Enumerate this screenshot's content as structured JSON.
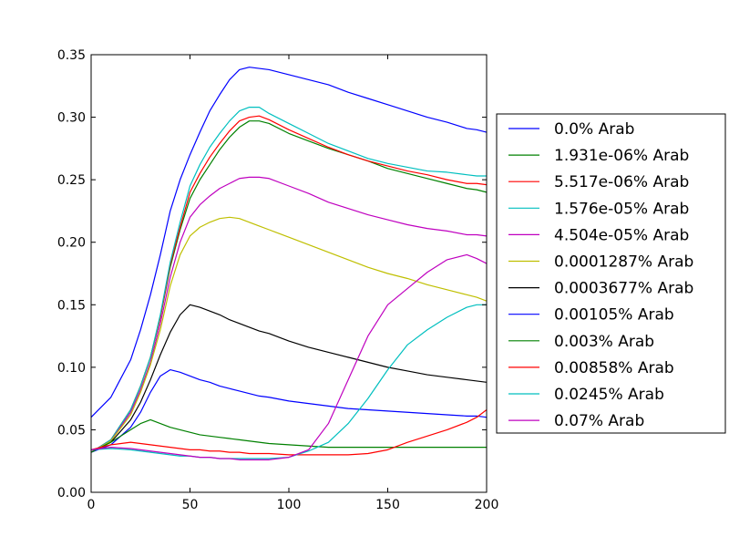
{
  "chart_data": {
    "type": "line",
    "title": "",
    "xlabel": "",
    "ylabel": "",
    "xlim": [
      0,
      200
    ],
    "ylim": [
      0,
      0.35
    ],
    "x_ticks": [
      0,
      50,
      100,
      150,
      200
    ],
    "y_ticks": [
      0.0,
      0.05,
      0.1,
      0.15,
      0.2,
      0.25,
      0.3,
      0.35
    ],
    "x_tick_labels": [
      "0",
      "50",
      "100",
      "150",
      "200"
    ],
    "y_tick_labels": [
      "0.00",
      "0.05",
      "0.10",
      "0.15",
      "0.20",
      "0.25",
      "0.30",
      "0.35"
    ],
    "grid": false,
    "legend_position": "right",
    "x": [
      0,
      10,
      20,
      25,
      30,
      35,
      40,
      45,
      50,
      55,
      60,
      65,
      70,
      75,
      80,
      85,
      90,
      100,
      110,
      120,
      130,
      140,
      150,
      160,
      170,
      180,
      190,
      195,
      200
    ],
    "series": [
      {
        "name": "0.0% Arab",
        "color": "#0000ff",
        "values": [
          0.06,
          0.076,
          0.106,
          0.13,
          0.158,
          0.19,
          0.225,
          0.25,
          0.27,
          0.288,
          0.305,
          0.318,
          0.33,
          0.338,
          0.34,
          0.339,
          0.338,
          0.334,
          0.33,
          0.326,
          0.32,
          0.315,
          0.31,
          0.305,
          0.3,
          0.296,
          0.291,
          0.29,
          0.288
        ]
      },
      {
        "name": "1.931e-06% Arab",
        "color": "#008000",
        "values": [
          0.032,
          0.042,
          0.066,
          0.085,
          0.108,
          0.14,
          0.18,
          0.21,
          0.235,
          0.25,
          0.262,
          0.274,
          0.284,
          0.292,
          0.297,
          0.297,
          0.295,
          0.287,
          0.281,
          0.275,
          0.27,
          0.265,
          0.259,
          0.255,
          0.251,
          0.247,
          0.243,
          0.242,
          0.24
        ]
      },
      {
        "name": "5.517e-06% Arab",
        "color": "#ff0000",
        "values": [
          0.032,
          0.042,
          0.066,
          0.085,
          0.108,
          0.14,
          0.182,
          0.212,
          0.24,
          0.255,
          0.268,
          0.279,
          0.289,
          0.297,
          0.3,
          0.301,
          0.298,
          0.29,
          0.283,
          0.276,
          0.27,
          0.265,
          0.261,
          0.257,
          0.254,
          0.25,
          0.247,
          0.247,
          0.246
        ]
      },
      {
        "name": "1.576e-05% Arab",
        "color": "#00bfbf",
        "values": [
          0.032,
          0.042,
          0.066,
          0.085,
          0.108,
          0.142,
          0.184,
          0.216,
          0.245,
          0.262,
          0.276,
          0.287,
          0.297,
          0.305,
          0.308,
          0.308,
          0.303,
          0.295,
          0.287,
          0.279,
          0.273,
          0.267,
          0.263,
          0.26,
          0.257,
          0.256,
          0.254,
          0.253,
          0.253
        ]
      },
      {
        "name": "4.504e-05% Arab",
        "color": "#bf00bf",
        "values": [
          0.032,
          0.041,
          0.064,
          0.082,
          0.104,
          0.135,
          0.172,
          0.2,
          0.22,
          0.23,
          0.237,
          0.243,
          0.247,
          0.251,
          0.252,
          0.252,
          0.251,
          0.245,
          0.239,
          0.232,
          0.227,
          0.222,
          0.218,
          0.214,
          0.211,
          0.209,
          0.206,
          0.206,
          0.205
        ]
      },
      {
        "name": "0.0001287% Arab",
        "color": "#bfbf00",
        "values": [
          0.032,
          0.041,
          0.062,
          0.08,
          0.102,
          0.13,
          0.165,
          0.19,
          0.205,
          0.212,
          0.216,
          0.219,
          0.22,
          0.219,
          0.216,
          0.213,
          0.21,
          0.204,
          0.198,
          0.192,
          0.186,
          0.18,
          0.175,
          0.171,
          0.166,
          0.162,
          0.158,
          0.156,
          0.153
        ]
      },
      {
        "name": "0.0003677% Arab",
        "color": "#000000",
        "values": [
          0.032,
          0.04,
          0.058,
          0.072,
          0.09,
          0.11,
          0.128,
          0.142,
          0.15,
          0.148,
          0.145,
          0.142,
          0.138,
          0.135,
          0.132,
          0.129,
          0.127,
          0.121,
          0.116,
          0.112,
          0.108,
          0.104,
          0.1,
          0.097,
          0.094,
          0.092,
          0.09,
          0.089,
          0.088
        ]
      },
      {
        "name": "0.00105% Arab",
        "color": "#0000ff",
        "values": [
          0.032,
          0.038,
          0.052,
          0.064,
          0.08,
          0.093,
          0.098,
          0.096,
          0.093,
          0.09,
          0.088,
          0.085,
          0.083,
          0.081,
          0.079,
          0.077,
          0.076,
          0.073,
          0.071,
          0.069,
          0.067,
          0.066,
          0.065,
          0.064,
          0.063,
          0.062,
          0.061,
          0.061,
          0.06
        ]
      },
      {
        "name": "0.003% Arab",
        "color": "#008000",
        "values": [
          0.032,
          0.04,
          0.05,
          0.055,
          0.058,
          0.055,
          0.052,
          0.05,
          0.048,
          0.046,
          0.045,
          0.044,
          0.043,
          0.042,
          0.041,
          0.04,
          0.039,
          0.038,
          0.037,
          0.036,
          0.036,
          0.036,
          0.036,
          0.036,
          0.036,
          0.036,
          0.036,
          0.036,
          0.036
        ]
      },
      {
        "name": "0.00858% Arab",
        "color": "#ff0000",
        "values": [
          0.034,
          0.038,
          0.04,
          0.039,
          0.038,
          0.037,
          0.036,
          0.035,
          0.034,
          0.034,
          0.033,
          0.033,
          0.032,
          0.032,
          0.031,
          0.031,
          0.031,
          0.03,
          0.03,
          0.03,
          0.03,
          0.031,
          0.034,
          0.04,
          0.045,
          0.05,
          0.056,
          0.06,
          0.066
        ]
      },
      {
        "name": "0.0245% Arab",
        "color": "#00bfbf",
        "values": [
          0.034,
          0.035,
          0.034,
          0.033,
          0.032,
          0.031,
          0.03,
          0.029,
          0.029,
          0.028,
          0.028,
          0.027,
          0.027,
          0.027,
          0.027,
          0.027,
          0.027,
          0.028,
          0.033,
          0.04,
          0.055,
          0.075,
          0.098,
          0.118,
          0.13,
          0.14,
          0.148,
          0.15,
          0.15
        ]
      },
      {
        "name": "0.07% Arab",
        "color": "#bf00bf",
        "values": [
          0.034,
          0.036,
          0.035,
          0.034,
          0.033,
          0.032,
          0.031,
          0.03,
          0.029,
          0.028,
          0.028,
          0.027,
          0.027,
          0.026,
          0.026,
          0.026,
          0.026,
          0.028,
          0.034,
          0.055,
          0.09,
          0.125,
          0.15,
          0.163,
          0.176,
          0.186,
          0.19,
          0.187,
          0.183
        ]
      }
    ]
  }
}
